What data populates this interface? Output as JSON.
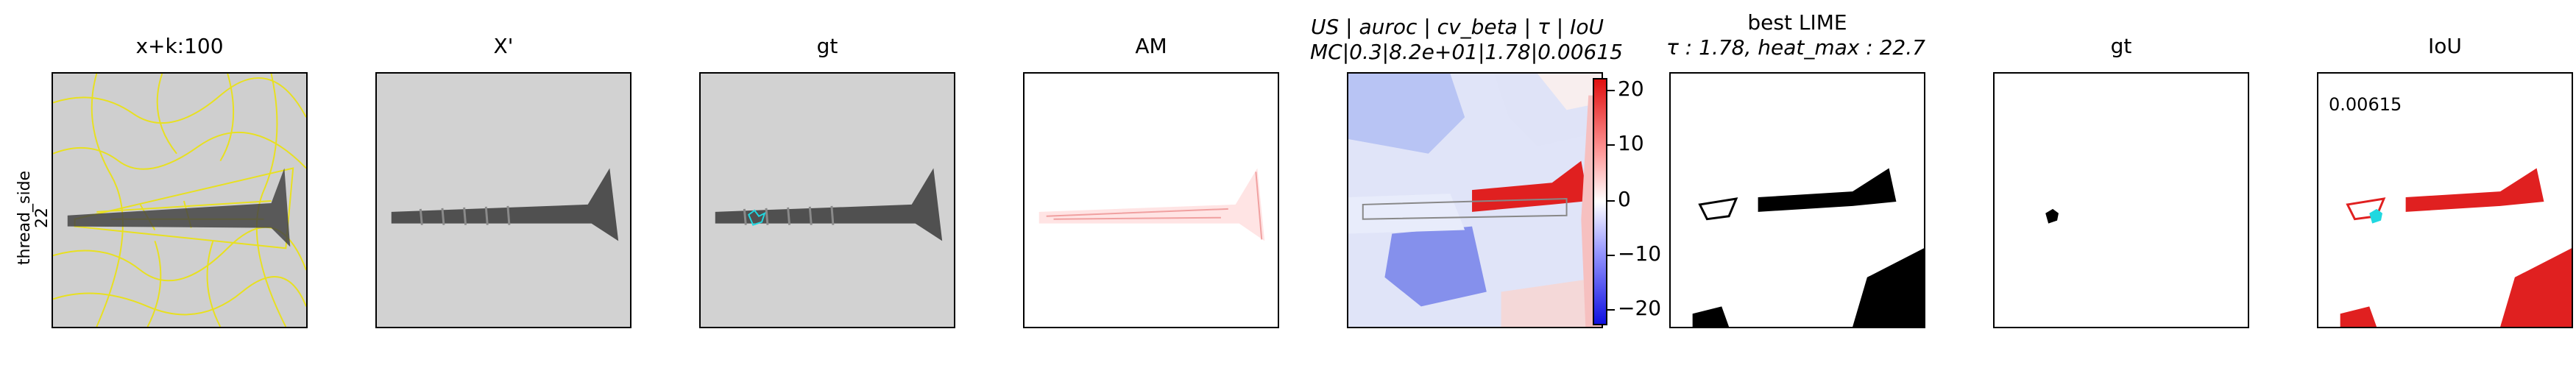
{
  "row_label": {
    "line1": "thread_side",
    "line2": "22"
  },
  "panels": {
    "p1": {
      "title": "x+k:100"
    },
    "p2": {
      "title": "X'"
    },
    "p3": {
      "title": "gt"
    },
    "p4": {
      "title": "AM"
    },
    "p5": {
      "title_line1": "US | auroc | cv_beta | τ | IoU",
      "title_line2": "MC|0.3|8.2e+01|1.78|0.00615"
    },
    "p6": {
      "title_line1": "best LIME",
      "title_line2": "τ : 1.78, heat_max : 22.7"
    },
    "p7": {
      "title": "gt"
    },
    "p8": {
      "title": "IoU",
      "value_label": "0.00615"
    }
  },
  "colorbar": {
    "ticks": [
      "20",
      "10",
      "0",
      "−10",
      "−20"
    ],
    "range": [
      -22.7,
      22.7
    ]
  },
  "colors": {
    "segment_boundary": "#e8e020",
    "gt_contour": "#20d8e0",
    "heat_pos": "#e02020",
    "heat_neg": "#2020e0"
  }
}
